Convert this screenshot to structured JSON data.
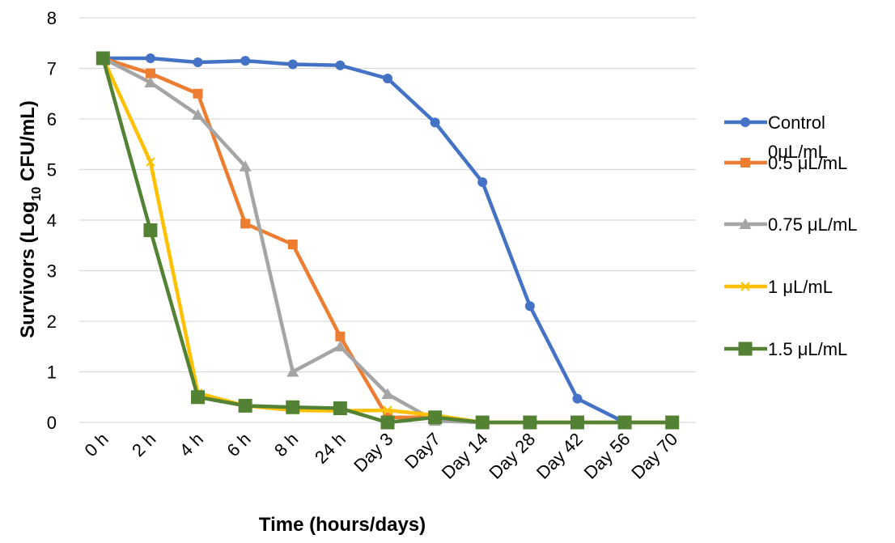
{
  "chart_data": {
    "type": "line",
    "title": "",
    "xlabel": "Time (hours/days)",
    "ylabel_parts": [
      "Survivors (Log",
      "10",
      " CFU/mL)"
    ],
    "categories": [
      "0 h",
      "2 h",
      "4 h",
      "6 h",
      "8 h",
      "24 h",
      "Day 3",
      "Day7",
      "Day 14",
      "Day 28",
      "Day 42",
      "Day 56",
      "Day 70"
    ],
    "ylim": [
      0,
      8
    ],
    "yticks": [
      "0",
      "1",
      "2",
      "3",
      "4",
      "5",
      "6",
      "7",
      "8"
    ],
    "grid": true,
    "legend_position": "right",
    "series": [
      {
        "name_lines": [
          "Control",
          "0μL/mL"
        ],
        "color": "#4472c4",
        "marker": "circle",
        "values": [
          7.2,
          7.2,
          7.12,
          7.15,
          7.08,
          7.06,
          6.8,
          5.93,
          4.75,
          2.3,
          0.47,
          0.0,
          0.0
        ]
      },
      {
        "name_lines": [
          "0.5 μL/mL"
        ],
        "color": "#ed7d31",
        "marker": "square",
        "values": [
          7.2,
          6.9,
          6.5,
          3.93,
          3.52,
          1.7,
          0.1,
          0.1,
          0.0,
          0.0,
          0.0,
          0.0,
          0.0
        ]
      },
      {
        "name_lines": [
          "0.75 μL/mL"
        ],
        "color": "#a5a5a5",
        "marker": "triangle",
        "values": [
          7.2,
          6.72,
          6.08,
          5.06,
          1.0,
          1.5,
          0.56,
          0.03,
          0.0,
          0.0,
          0.0,
          0.0,
          0.0
        ]
      },
      {
        "name_lines": [
          "1 μL/mL"
        ],
        "color": "#ffc000",
        "marker": "x",
        "values": [
          7.2,
          5.15,
          0.58,
          0.33,
          0.24,
          0.23,
          0.24,
          0.14,
          0.0,
          0.0,
          0.0,
          0.0,
          0.0
        ]
      },
      {
        "name_lines": [
          "1.5 μL/mL"
        ],
        "color": "#548235",
        "marker": "bigsquare",
        "values": [
          7.2,
          3.8,
          0.5,
          0.33,
          0.3,
          0.28,
          0.0,
          0.1,
          0.0,
          0.0,
          0.0,
          0.0,
          0.0
        ]
      }
    ]
  }
}
